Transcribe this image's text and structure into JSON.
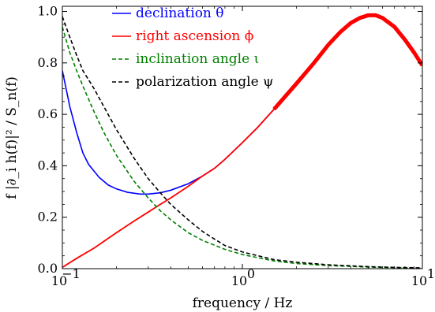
{
  "chart_data": {
    "type": "line",
    "xlabel": "frequency / Hz",
    "ylabel": "f |∂_i h(f)|² / S_n(f)",
    "xscale": "log",
    "xlim": [
      0.1,
      10
    ],
    "ylim": [
      0,
      1.02
    ],
    "x_ticks": [
      {
        "value": 0.1,
        "label": "10"
      },
      {
        "value": 1,
        "label": "10"
      },
      {
        "value": 10,
        "label": "10"
      }
    ],
    "x_tick_exponents": [
      "−1",
      "0",
      "1"
    ],
    "y_ticks": [
      {
        "value": 0.0,
        "label": "0.0"
      },
      {
        "value": 0.2,
        "label": "0.2"
      },
      {
        "value": 0.4,
        "label": "0.4"
      },
      {
        "value": 0.6,
        "label": "0.6"
      },
      {
        "value": 0.8,
        "label": "0.8"
      },
      {
        "value": 1.0,
        "label": "1.0"
      }
    ],
    "legend_position": "top-center",
    "grid": false,
    "series": [
      {
        "name": "declination θ",
        "color": "#0000ff",
        "style": "solid",
        "points": [
          [
            0.1,
            0.77
          ],
          [
            0.11,
            0.63
          ],
          [
            0.12,
            0.53
          ],
          [
            0.13,
            0.45
          ],
          [
            0.14,
            0.405
          ],
          [
            0.16,
            0.355
          ],
          [
            0.18,
            0.325
          ],
          [
            0.2,
            0.31
          ],
          [
            0.23,
            0.297
          ],
          [
            0.27,
            0.29
          ],
          [
            0.3,
            0.29
          ],
          [
            0.35,
            0.295
          ],
          [
            0.4,
            0.305
          ],
          [
            0.5,
            0.33
          ],
          [
            0.6,
            0.36
          ],
          [
            0.7,
            0.39
          ],
          [
            0.8,
            0.425
          ],
          [
            1.0,
            0.49
          ],
          [
            1.2,
            0.545
          ],
          [
            1.5,
            0.62
          ],
          [
            2.0,
            0.72
          ],
          [
            2.5,
            0.8
          ],
          [
            3.0,
            0.87
          ],
          [
            3.5,
            0.92
          ],
          [
            4.0,
            0.955
          ],
          [
            4.5,
            0.975
          ],
          [
            5.0,
            0.985
          ],
          [
            5.5,
            0.985
          ],
          [
            6.0,
            0.975
          ],
          [
            7.0,
            0.94
          ],
          [
            8.0,
            0.89
          ],
          [
            9.0,
            0.84
          ],
          [
            10.0,
            0.79
          ]
        ]
      },
      {
        "name": "right ascension ϕ",
        "color": "#ff0000",
        "style": "solid",
        "points": [
          [
            0.1,
            0.005
          ],
          [
            0.12,
            0.04
          ],
          [
            0.15,
            0.08
          ],
          [
            0.2,
            0.14
          ],
          [
            0.25,
            0.185
          ],
          [
            0.3,
            0.22
          ],
          [
            0.35,
            0.25
          ],
          [
            0.4,
            0.275
          ],
          [
            0.5,
            0.32
          ],
          [
            0.6,
            0.36
          ],
          [
            0.7,
            0.39
          ],
          [
            0.8,
            0.425
          ],
          [
            1.0,
            0.49
          ],
          [
            1.2,
            0.545
          ],
          [
            1.5,
            0.62
          ],
          [
            2.0,
            0.72
          ],
          [
            2.5,
            0.8
          ],
          [
            3.0,
            0.87
          ],
          [
            3.5,
            0.92
          ],
          [
            4.0,
            0.955
          ],
          [
            4.5,
            0.975
          ],
          [
            5.0,
            0.985
          ],
          [
            5.5,
            0.985
          ],
          [
            6.0,
            0.975
          ],
          [
            7.0,
            0.94
          ],
          [
            8.0,
            0.89
          ],
          [
            9.0,
            0.84
          ],
          [
            10.0,
            0.79
          ]
        ]
      },
      {
        "name": "inclination angle ι",
        "color": "#008000",
        "style": "dashed",
        "points": [
          [
            0.1,
            0.94
          ],
          [
            0.11,
            0.84
          ],
          [
            0.12,
            0.77
          ],
          [
            0.13,
            0.71
          ],
          [
            0.15,
            0.61
          ],
          [
            0.17,
            0.53
          ],
          [
            0.2,
            0.44
          ],
          [
            0.25,
            0.34
          ],
          [
            0.3,
            0.275
          ],
          [
            0.35,
            0.225
          ],
          [
            0.4,
            0.19
          ],
          [
            0.5,
            0.14
          ],
          [
            0.6,
            0.11
          ],
          [
            0.8,
            0.075
          ],
          [
            1.0,
            0.055
          ],
          [
            1.5,
            0.03
          ],
          [
            2.0,
            0.02
          ],
          [
            3.0,
            0.012
          ],
          [
            5.0,
            0.006
          ],
          [
            7.0,
            0.004
          ],
          [
            10.0,
            0.002
          ]
        ]
      },
      {
        "name": "polarization angle ψ",
        "color": "#000000",
        "style": "dashed",
        "points": [
          [
            0.1,
            0.98
          ],
          [
            0.11,
            0.9
          ],
          [
            0.12,
            0.83
          ],
          [
            0.13,
            0.77
          ],
          [
            0.15,
            0.7
          ],
          [
            0.17,
            0.63
          ],
          [
            0.2,
            0.54
          ],
          [
            0.25,
            0.43
          ],
          [
            0.3,
            0.35
          ],
          [
            0.35,
            0.295
          ],
          [
            0.4,
            0.25
          ],
          [
            0.5,
            0.19
          ],
          [
            0.6,
            0.145
          ],
          [
            0.7,
            0.115
          ],
          [
            0.8,
            0.09
          ],
          [
            1.0,
            0.065
          ],
          [
            1.5,
            0.035
          ],
          [
            2.0,
            0.025
          ],
          [
            3.0,
            0.015
          ],
          [
            5.0,
            0.008
          ],
          [
            7.0,
            0.005
          ],
          [
            10.0,
            0.003
          ]
        ]
      }
    ]
  }
}
